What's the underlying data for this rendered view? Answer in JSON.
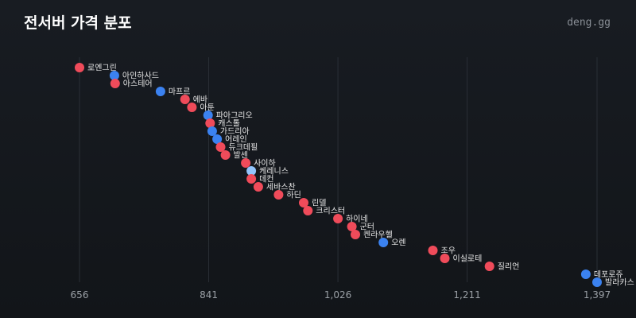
{
  "header": {
    "title": "전서버 가격 분포",
    "brand": "deng.gg"
  },
  "colors": {
    "red": "#ef4b5a",
    "blue": "#3b82f0",
    "lightblue": "#93c5fd",
    "grid": "#2a2f36",
    "tick": "#9aa0a6"
  },
  "chart_data": {
    "type": "scatter",
    "title": "전서버 가격 분포",
    "xlabel": "",
    "ylabel": "",
    "xlim": [
      650,
      1402
    ],
    "xticks": [
      656,
      841,
      1026,
      1211,
      1397
    ],
    "xtick_labels": [
      "656",
      "841",
      "1,026",
      "1,211",
      "1,397"
    ],
    "grid": "vertical",
    "points": [
      {
        "label": "로엔그린",
        "x": 656,
        "color": "red"
      },
      {
        "label": "아인하사드",
        "x": 706,
        "color": "blue"
      },
      {
        "label": "아스테어",
        "x": 707,
        "color": "red"
      },
      {
        "label": "마프르",
        "x": 772,
        "color": "blue"
      },
      {
        "label": "에바",
        "x": 807,
        "color": "red"
      },
      {
        "label": "아툰",
        "x": 817,
        "color": "red"
      },
      {
        "label": "파아그리오",
        "x": 840,
        "color": "blue"
      },
      {
        "label": "캐스톨",
        "x": 843,
        "color": "red"
      },
      {
        "label": "가드리아",
        "x": 846,
        "color": "blue"
      },
      {
        "label": "어레인",
        "x": 853,
        "color": "blue"
      },
      {
        "label": "듀크데필",
        "x": 858,
        "color": "red"
      },
      {
        "label": "발센",
        "x": 865,
        "color": "red"
      },
      {
        "label": "사이하",
        "x": 894,
        "color": "red"
      },
      {
        "label": "케레니스",
        "x": 902,
        "color": "lightblue"
      },
      {
        "label": "데컨",
        "x": 902,
        "color": "red"
      },
      {
        "label": "세바스찬",
        "x": 912,
        "color": "red"
      },
      {
        "label": "하딘",
        "x": 941,
        "color": "red"
      },
      {
        "label": "린델",
        "x": 977,
        "color": "red"
      },
      {
        "label": "크리스터",
        "x": 983,
        "color": "red"
      },
      {
        "label": "하이네",
        "x": 1026,
        "color": "red"
      },
      {
        "label": "군터",
        "x": 1046,
        "color": "red"
      },
      {
        "label": "켄라우헬",
        "x": 1051,
        "color": "red"
      },
      {
        "label": "오렌",
        "x": 1091,
        "color": "blue"
      },
      {
        "label": "조우",
        "x": 1162,
        "color": "red"
      },
      {
        "label": "이실로테",
        "x": 1179,
        "color": "red"
      },
      {
        "label": "질리언",
        "x": 1243,
        "color": "red"
      },
      {
        "label": "데포로쥬",
        "x": 1381,
        "color": "blue"
      },
      {
        "label": "발라카스",
        "x": 1397,
        "color": "blue"
      }
    ]
  }
}
